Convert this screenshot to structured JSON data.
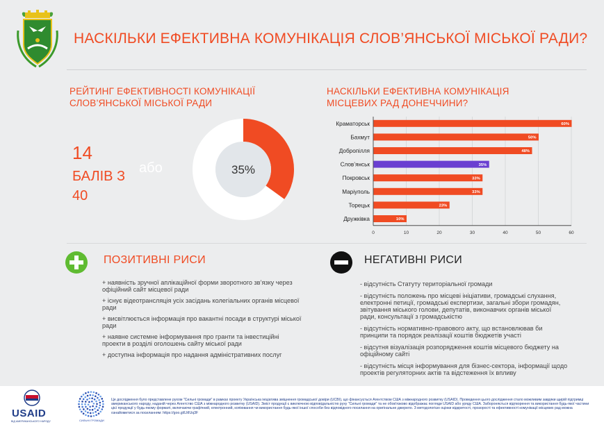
{
  "header": {
    "title": "НАСКІЛЬКИ ЕФЕКТИВНА КОМУНІКАЦІЯ СЛОВ’ЯНСЬКОЇ МІСЬКОЇ РАДИ?"
  },
  "left": {
    "title_line1": "РЕЙТИНГ ЕФЕКТИВНОСТІ КОМУНІКАЦІЇ",
    "title_line2": "СЛОВ’ЯНСЬКОЇ МІСЬКОЇ РАДИ",
    "score": "14",
    "score_label": "БАЛІВ З 40",
    "abo": "або"
  },
  "right": {
    "title_line1": "НАСКІЛЬКИ ЕФЕКТИВНА КОМУНІКАЦІЯ",
    "title_line2": "МІСЦЕВИХ РАД ДОНЕЧЧИНИ?"
  },
  "colors": {
    "accent": "#f04b23",
    "highlight": "#6a3fd1",
    "donut_rest": "#ffffff",
    "donut_center": "#e2e6ea"
  },
  "chart_data": [
    {
      "type": "pie",
      "variant": "donut",
      "values": [
        35,
        65
      ],
      "center_label": "35%"
    },
    {
      "type": "bar",
      "orientation": "horizontal",
      "categories": [
        "Краматорськ",
        "Бахмут",
        "Добропілля",
        "Слов’янськ",
        "Покровськ",
        "Маріуполь",
        "Торецьк",
        "Дружківка"
      ],
      "values": [
        60,
        50,
        48,
        35,
        33,
        33,
        23,
        10
      ],
      "value_labels": [
        "60%",
        "50%",
        "48%",
        "35%",
        "33%",
        "33%",
        "23%",
        "10%"
      ],
      "highlight": "Слов’янськ",
      "xlim": [
        0,
        60
      ],
      "xticks": [
        "0",
        "10",
        "20",
        "30",
        "40",
        "50",
        "60"
      ],
      "grid": true
    }
  ],
  "positive": {
    "title": "ПОЗИТИВНІ РИСИ",
    "icon": "plus-circle-icon",
    "items": [
      "+ наявність зручної аплікаційної форми зворотного зв’язку через офіційний сайт місцевої ради",
      "+ існує відеотрансляція усіх засідань колегіальних органів місцевої ради",
      "+ висвітлюється інформація про вакантні посади в структурі міської ради",
      "+ наявне системне інформування про гранти та інвестиційні проекти в розділі оголошень сайту міської ради",
      "+ доступна інформація про надання адміністративних послуг"
    ]
  },
  "negative": {
    "title": "НЕГАТИВНІ РИСИ",
    "icon": "minus-circle-icon",
    "items": [
      "- відсутність Статуту територіальної громади",
      "- відсутність положень про місцеві ініціативи, громадські слухання, електронні петиції, громадські експертизи, загальні збори громадян, звітування міського голови, депутатів, виконавчих органів міської ради, консультації з громадськістю",
      "- відсутність нормативно-правового акту, що встановлював би принципи та порядок реалізації коштів бюджетів участі",
      "- відсутня візуалізація розпорядження коштів місцевого бюджету на офіційному сайті",
      "- відсутність місця інформування для бізнес-сектора, інформації щодо проектів регуляторних актів та відстеження їх впливу"
    ]
  },
  "footer": {
    "usaid": "USAID",
    "usaid_sub": "ВІД АМЕРИКАНСЬКОГО НАРОДУ",
    "strong_sub": "СИЛЬНІ ГРОМАДИ",
    "text": "Це дослідження було представлене рухом \"Сильні громади\" в рамках проекту Українська ініціатива зміцнення громадської довіри (UCBI), що фінансується Агентством США з міжнародного розвитку (USAID). Проведення цього дослідження стало можливим завдяки щирій підтримці американського народу, наданій через Агентство США з міжнародного розвитку (USAID). Зміст продукції є виключною відповідальністю руху \"Сильні громади\" та не обов'язково відображає погляди USAID або уряду США. Забороняється відтворення та використання будь-якої частини цієї продукції у будь-якому форматі, включаючи графічний, електронний, копіювання чи використання будь-якої іншої способи без відповідного посилання на оригінальне джерело. З методологією оцінки відкритості, прозорості та ефективності комунікації місцевих рад можна ознайомитися за посиланням: https://goo.gl/LMUq3F"
  }
}
